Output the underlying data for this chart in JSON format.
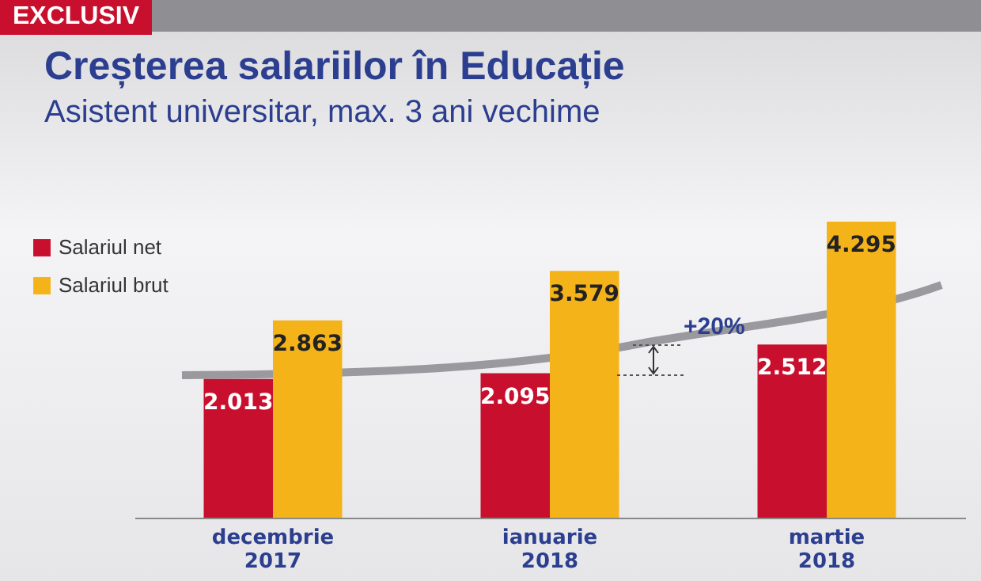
{
  "chart_data": {
    "type": "bar",
    "title": "Creșterea salariilor în Educație",
    "subtitle": "Asistent universitar, max. 3 ani vechime",
    "annotations": [
      "EXCLUSIV",
      "+20%"
    ],
    "categories": [
      "decembrie 2017",
      "ianuarie 2018",
      "martie 2018"
    ],
    "series": [
      {
        "name": "Salariul net",
        "color": "#c8102e",
        "values": [
          2013,
          2095,
          2512
        ],
        "value_labels": [
          "2.013",
          "2.095",
          "2.512"
        ]
      },
      {
        "name": "Salariul brut",
        "color": "#f5b31a",
        "values": [
          2863,
          3579,
          4295
        ],
        "value_labels": [
          "2.863",
          "3.579",
          "4.295"
        ]
      }
    ],
    "legend": "top left"
  }
}
